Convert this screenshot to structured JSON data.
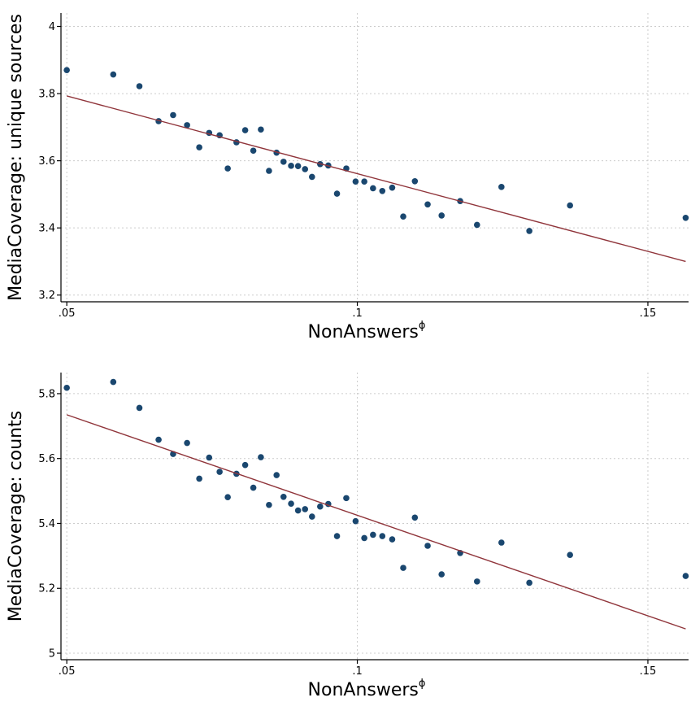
{
  "chart_data": [
    {
      "type": "scatter",
      "xlabel": "NonAnswers",
      "xlabel_superscript": "ϕ",
      "ylabel": "MediaCoverage: unique sources",
      "xlim": [
        0.049,
        0.157
      ],
      "ylim": [
        3.18,
        4.04
      ],
      "xticks": [
        0.05,
        0.1,
        0.15
      ],
      "xtick_labels": [
        ".05",
        ".1",
        ".15"
      ],
      "yticks": [
        3.2,
        3.4,
        3.6,
        3.8,
        4
      ],
      "ytick_labels": [
        "3.2",
        "3.4",
        "3.6",
        "3.8",
        "4"
      ],
      "grid": true,
      "series": [
        {
          "kind": "points",
          "color": "#1a476f",
          "x": [
            0.05,
            0.058,
            0.0625,
            0.0658,
            0.0683,
            0.0707,
            0.0728,
            0.0745,
            0.0763,
            0.0777,
            0.0792,
            0.0807,
            0.0821,
            0.0834,
            0.0848,
            0.0861,
            0.0873,
            0.0886,
            0.0898,
            0.091,
            0.0922,
            0.0936,
            0.095,
            0.0965,
            0.0981,
            0.0997,
            0.1012,
            0.1027,
            0.1043,
            0.106,
            0.1079,
            0.1099,
            0.1121,
            0.1145,
            0.1177,
            0.1206,
            0.1248,
            0.1296,
            0.1366,
            0.1565
          ],
          "y": [
            3.87,
            3.857,
            3.822,
            3.718,
            3.736,
            3.706,
            3.64,
            3.683,
            3.676,
            3.577,
            3.655,
            3.691,
            3.63,
            3.693,
            3.57,
            3.624,
            3.597,
            3.585,
            3.584,
            3.575,
            3.552,
            3.59,
            3.586,
            3.502,
            3.577,
            3.538,
            3.538,
            3.518,
            3.51,
            3.52,
            3.434,
            3.539,
            3.47,
            3.437,
            3.48,
            3.409,
            3.522,
            3.391,
            3.467,
            3.43
          ]
        },
        {
          "kind": "fit-line",
          "color": "#90353b",
          "x": [
            0.05,
            0.1565
          ],
          "y": [
            3.793,
            3.3
          ]
        }
      ]
    },
    {
      "type": "scatter",
      "xlabel": "NonAnswers",
      "xlabel_superscript": "ϕ",
      "ylabel": "MediaCoverage: counts",
      "xlim": [
        0.049,
        0.157
      ],
      "ylim": [
        4.98,
        5.865
      ],
      "xticks": [
        0.05,
        0.1,
        0.15
      ],
      "xtick_labels": [
        ".05",
        ".1",
        ".15"
      ],
      "yticks": [
        5,
        5.2,
        5.4,
        5.6,
        5.8
      ],
      "ytick_labels": [
        "5",
        "5.2",
        "5.4",
        "5.6",
        "5.8"
      ],
      "grid": true,
      "series": [
        {
          "kind": "points",
          "color": "#1a476f",
          "x": [
            0.05,
            0.058,
            0.0625,
            0.0658,
            0.0683,
            0.0707,
            0.0728,
            0.0745,
            0.0763,
            0.0777,
            0.0792,
            0.0807,
            0.0821,
            0.0834,
            0.0848,
            0.0861,
            0.0873,
            0.0886,
            0.0898,
            0.091,
            0.0922,
            0.0936,
            0.095,
            0.0965,
            0.0981,
            0.0997,
            0.1012,
            0.1027,
            0.1043,
            0.106,
            0.1079,
            0.1099,
            0.1121,
            0.1145,
            0.1177,
            0.1206,
            0.1248,
            0.1296,
            0.1366,
            0.1565
          ],
          "y": [
            5.818,
            5.836,
            5.756,
            5.658,
            5.614,
            5.648,
            5.538,
            5.603,
            5.559,
            5.481,
            5.553,
            5.58,
            5.51,
            5.604,
            5.457,
            5.549,
            5.482,
            5.461,
            5.44,
            5.444,
            5.421,
            5.452,
            5.46,
            5.361,
            5.478,
            5.407,
            5.355,
            5.365,
            5.361,
            5.351,
            5.263,
            5.418,
            5.331,
            5.243,
            5.309,
            5.221,
            5.341,
            5.217,
            5.303,
            5.238
          ]
        },
        {
          "kind": "fit-line",
          "color": "#90353b",
          "x": [
            0.05,
            0.1565
          ],
          "y": [
            5.735,
            5.075
          ]
        }
      ]
    }
  ]
}
